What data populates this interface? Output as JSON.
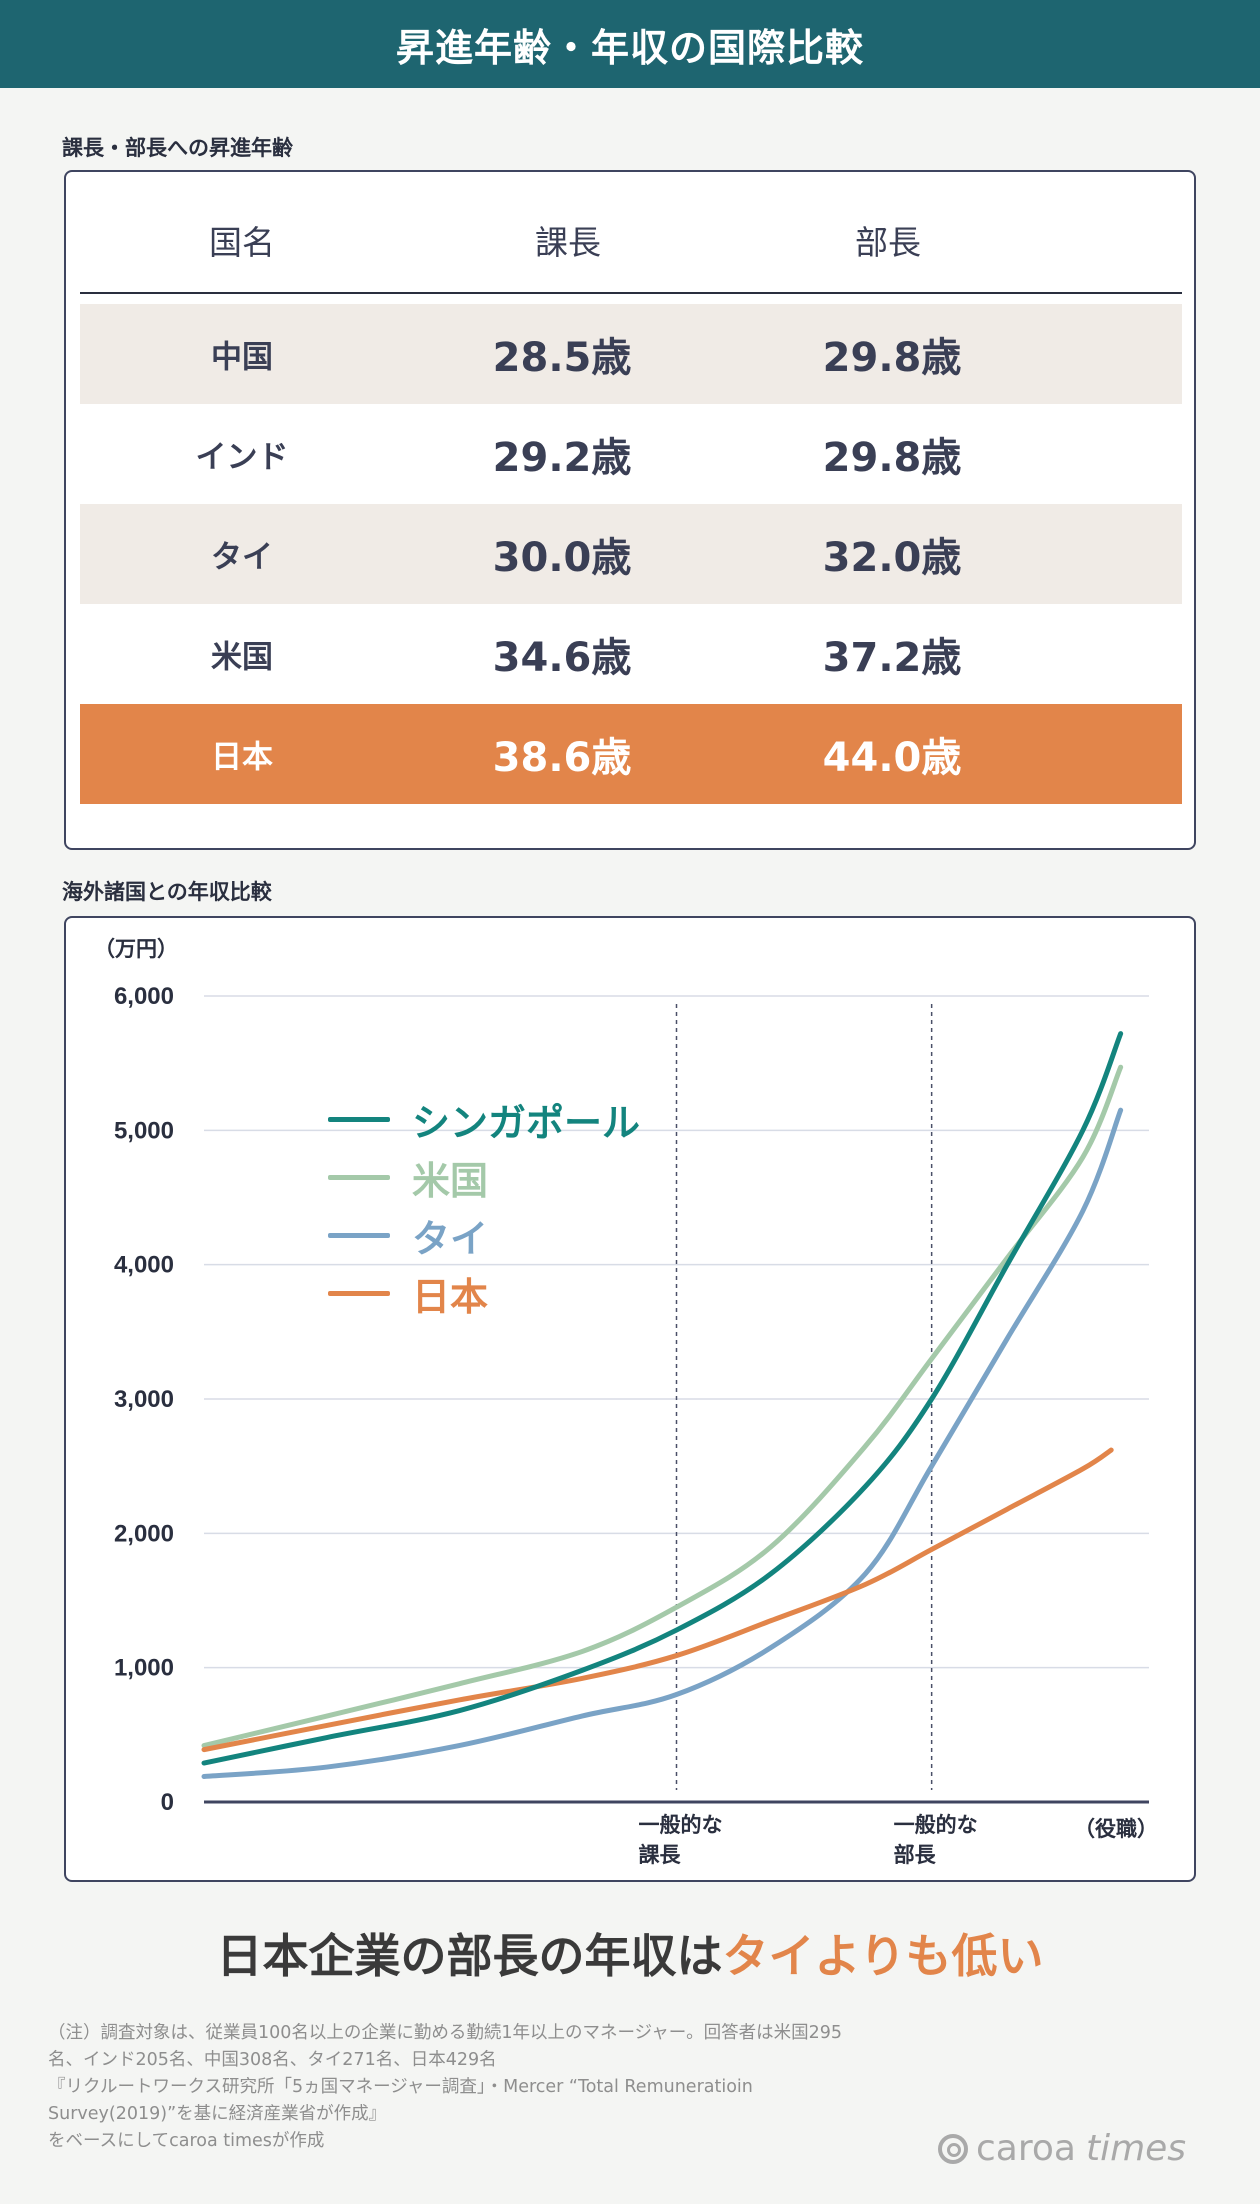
{
  "header": {
    "title": "昇進年齢・年収の国際比較"
  },
  "table_section": {
    "label": "課長・部長への昇進年齢",
    "columns": [
      "国名",
      "課長",
      "部長"
    ],
    "rows": [
      {
        "country": "中国",
        "manager": "28.5歳",
        "director": "29.8歳",
        "highlight": false
      },
      {
        "country": "インド",
        "manager": "29.2歳",
        "director": "29.8歳",
        "highlight": false
      },
      {
        "country": "タイ",
        "manager": "30.0歳",
        "director": "32.0歳",
        "highlight": false
      },
      {
        "country": "米国",
        "manager": "34.6歳",
        "director": "37.2歳",
        "highlight": false
      },
      {
        "country": "日本",
        "manager": "38.6歳",
        "director": "44.0歳",
        "highlight": true
      }
    ]
  },
  "chart_section": {
    "label": "海外諸国との年収比較"
  },
  "chart_data": {
    "type": "line",
    "title": "",
    "ylabel": "（万円）",
    "xlabel": "（役職）",
    "ylim": [
      0,
      6000
    ],
    "yticks": [
      0,
      1000,
      2000,
      3000,
      4000,
      5000,
      6000
    ],
    "ytick_labels": [
      "0",
      "1,000",
      "2,000",
      "3,000",
      "4,000",
      "5,000",
      "6,000"
    ],
    "x_markers": [
      {
        "label_line1": "一般的な",
        "label_line2": "課長",
        "x": 0.5
      },
      {
        "label_line1": "一般的な",
        "label_line2": "部長",
        "x": 0.77
      }
    ],
    "grid": true,
    "legend_position": "top-left",
    "series": [
      {
        "name": "シンガポール",
        "color": "#13847e",
        "points": [
          [
            0,
            290
          ],
          [
            0.13,
            480
          ],
          [
            0.27,
            680
          ],
          [
            0.4,
            980
          ],
          [
            0.5,
            1280
          ],
          [
            0.6,
            1700
          ],
          [
            0.7,
            2350
          ],
          [
            0.77,
            3000
          ],
          [
            0.85,
            4000
          ],
          [
            0.93,
            5000
          ],
          [
            0.97,
            5720
          ]
        ]
      },
      {
        "name": "米国",
        "color": "#a4c9a9",
        "points": [
          [
            0,
            420
          ],
          [
            0.13,
            640
          ],
          [
            0.27,
            880
          ],
          [
            0.4,
            1120
          ],
          [
            0.5,
            1450
          ],
          [
            0.6,
            1900
          ],
          [
            0.7,
            2650
          ],
          [
            0.77,
            3300
          ],
          [
            0.85,
            4050
          ],
          [
            0.93,
            4800
          ],
          [
            0.97,
            5470
          ]
        ]
      },
      {
        "name": "タイ",
        "color": "#7aa3c6",
        "points": [
          [
            0,
            190
          ],
          [
            0.13,
            260
          ],
          [
            0.27,
            420
          ],
          [
            0.4,
            640
          ],
          [
            0.5,
            800
          ],
          [
            0.6,
            1150
          ],
          [
            0.7,
            1700
          ],
          [
            0.77,
            2500
          ],
          [
            0.85,
            3450
          ],
          [
            0.93,
            4400
          ],
          [
            0.97,
            5150
          ]
        ]
      },
      {
        "name": "日本",
        "color": "#e2854a",
        "points": [
          [
            0,
            390
          ],
          [
            0.13,
            570
          ],
          [
            0.27,
            760
          ],
          [
            0.4,
            920
          ],
          [
            0.5,
            1090
          ],
          [
            0.6,
            1350
          ],
          [
            0.7,
            1620
          ],
          [
            0.77,
            1880
          ],
          [
            0.85,
            2180
          ],
          [
            0.93,
            2480
          ],
          [
            0.96,
            2620
          ]
        ]
      }
    ]
  },
  "headline": {
    "prefix": "日本企業の部長の年収は",
    "accent": "タイよりも低い"
  },
  "notes": [
    "（注）調査対象は、従業員100名以上の企業に勤める勤続1年以上のマネージャー。回答者は米国295",
    "名、インド205名、中国308名、タイ271名、日本429名",
    "『リクルートワークス研究所「5ヵ国マネージャー調査」・Mercer “Total Remuneratioin",
    "Survey(2019)”を基に経済産業省が作成』",
    "をベースにしてcaroa timesが作成"
  ],
  "logo": {
    "word1": "caroa",
    "word2": "times"
  }
}
